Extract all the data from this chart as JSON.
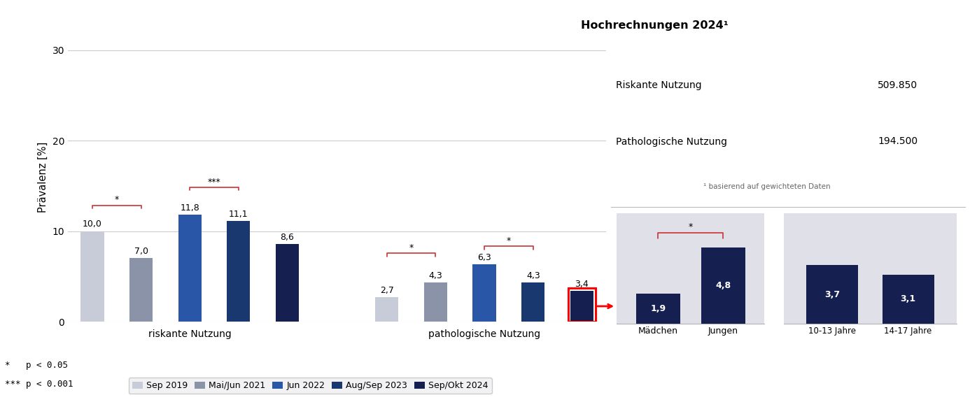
{
  "riskante_values": [
    10.0,
    7.0,
    11.8,
    11.1,
    8.6
  ],
  "pathologische_values": [
    2.7,
    4.3,
    6.3,
    4.3,
    3.4
  ],
  "gender_values": [
    1.9,
    4.8
  ],
  "gender_labels": [
    "Mädchen",
    "Jungen"
  ],
  "age_values": [
    3.7,
    3.1
  ],
  "age_labels": [
    "10-13 Jahre",
    "14-17 Jahre"
  ],
  "colors": [
    "#c8ccd8",
    "#8a93a8",
    "#2a56a8",
    "#1a3870",
    "#152050"
  ],
  "legend_labels": [
    "Sep 2019",
    "Mai/Jun 2021",
    "Jun 2022",
    "Aug/Sep 2023",
    "Sep/Okt 2024"
  ],
  "ylabel": "Prävalenz [%]",
  "yticks": [
    0,
    10,
    20,
    30
  ],
  "group_labels": [
    "riskante Nutzung",
    "pathologische Nutzung"
  ],
  "hochrechnungen_title": "Hochrechnungen 2024¹",
  "riskante_label": "Riskante Nutzung",
  "riskante_value_text": "509.850",
  "pathologische_label": "Pathologische Nutzung",
  "pathologische_value_text": "194.500",
  "footnote": "¹ basierend auf gewichteten Daten",
  "sig_note1": "*   p < 0.05",
  "sig_note2": "*** p < 0.001",
  "bar_width": 0.055,
  "background_color": "#ffffff",
  "inset_bg": "#e0e0e8"
}
